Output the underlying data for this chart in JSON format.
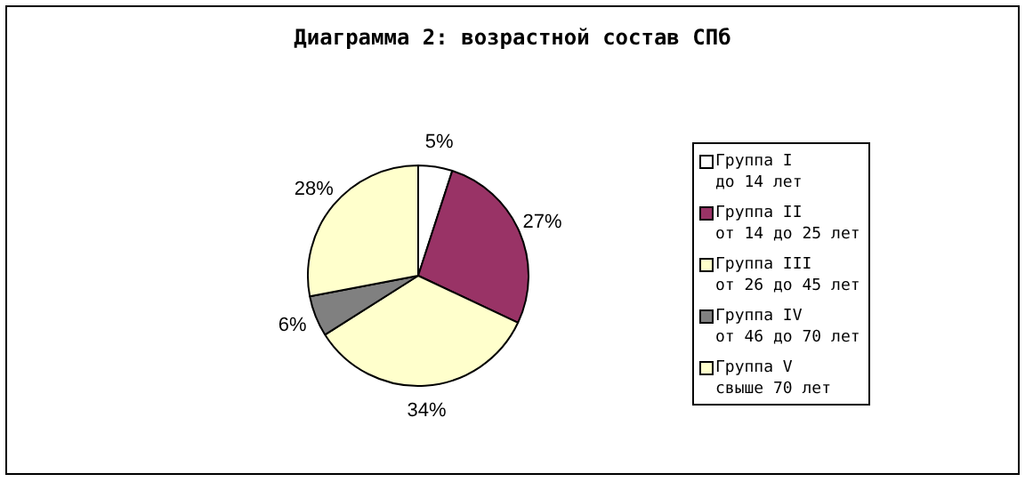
{
  "chart_data": {
    "type": "pie",
    "title": "Диаграмма 2: возрастной состав СПб",
    "categories": [
      "Группа I\nдо 14 лет",
      "Группа II\nот 14 до 25 лет",
      "Группа III\nот 26 до 45 лет",
      "Группа IV\nот 46 до 70 лет",
      "Группа V\nсвыше 70 лет"
    ],
    "values": [
      5,
      27,
      34,
      6,
      28
    ],
    "colors": [
      "#ffffff",
      "#993366",
      "#ffffcc",
      "#808080",
      "#ffffcc"
    ],
    "value_labels": [
      "5%",
      "27%",
      "34%",
      "6%",
      "28%"
    ],
    "legend": "right"
  }
}
